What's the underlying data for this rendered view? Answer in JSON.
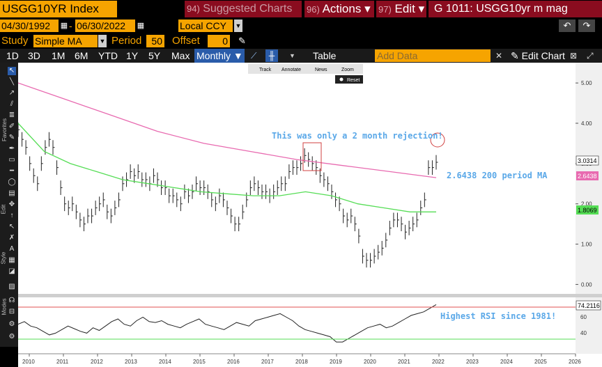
{
  "header": {
    "ticker": "USGG10YR Index",
    "suggested_num": "94)",
    "suggested_label": "Suggested Charts",
    "actions_num": "96)",
    "actions_label": "Actions",
    "edit_num": "97)",
    "edit_label": "Edit",
    "title": "G 1011: USGG10yr m mag"
  },
  "controls": {
    "start_date": "04/30/1992",
    "dash": "-",
    "end_date": "06/30/2022",
    "currency": "Local CCY",
    "study_label": "Study",
    "study_value": "Simple MA",
    "period_label": "Period",
    "period_value": "50",
    "offset_label": "Offset",
    "offset_value": "0"
  },
  "ranges": [
    "1D",
    "3D",
    "1M",
    "6M",
    "YTD",
    "1Y",
    "5Y",
    "Max"
  ],
  "frequency": "Monthly",
  "table_label": "Table",
  "add_data_placeholder": "Add Data",
  "edit_chart_label": "Edit Chart",
  "mini_toolbar": {
    "track": "Track",
    "annotate": "Annotate",
    "news": "News",
    "zoom": "Zoom",
    "reset": "Reset"
  },
  "side_labels": {
    "favorites": "Favorites",
    "edit": "Edit",
    "style": "Style",
    "modes": "Modes"
  },
  "annotations": {
    "rejection": "This was only a 2 month rejection!",
    "ma200": "2.6438 200 period MA",
    "rsi": "Highest RSI since 1981!"
  },
  "colors": {
    "orange": "#f6a400",
    "red": "#8a0c1f",
    "price": "#cccccc",
    "ma50": "#55dd55",
    "ma200": "#e86ab0",
    "annotation": "#5aa8e8"
  },
  "chart_data": {
    "type": "line",
    "x_ticks": [
      "2010",
      "2011",
      "2012",
      "2013",
      "2014",
      "2015",
      "2016",
      "2017",
      "2018",
      "2019",
      "2020",
      "2021",
      "2022",
      "2023",
      "2024",
      "2025",
      "2026"
    ],
    "y_ticks": [
      "5.00",
      "4.00",
      "3.00",
      "2.00",
      "1.00",
      "0.00"
    ],
    "ylim": [
      -0.2,
      5.4
    ],
    "last_price_label": "3.0314",
    "ma200_label": "2.6438",
    "ma50_label": "1.8069",
    "rsi_ticks": [
      "60",
      "40"
    ],
    "rsi_last_label": "74.2116",
    "series": [
      {
        "key": "price",
        "values": [
          3.84,
          3.6,
          3.4,
          3.0,
          2.7,
          2.5,
          3.0,
          3.4,
          3.6,
          3.4,
          2.9,
          2.4,
          2.0,
          1.9,
          2.0,
          1.8,
          1.6,
          1.5,
          1.7,
          1.7,
          1.9,
          2.0,
          2.1,
          1.8,
          1.7,
          1.9,
          2.1,
          2.5,
          2.6,
          2.8,
          2.7,
          2.8,
          2.6,
          2.6,
          2.5,
          2.7,
          2.6,
          2.4,
          2.4,
          2.2,
          2.2,
          2.1,
          2.0,
          2.3,
          2.2,
          2.3,
          2.5,
          2.4,
          2.4,
          2.3,
          2.1,
          2.0,
          2.2,
          2.1,
          1.9,
          1.7,
          1.5,
          1.5,
          1.8,
          2.1,
          2.4,
          2.5,
          2.4,
          2.3,
          2.3,
          2.2,
          2.3,
          2.4,
          2.5,
          2.5,
          2.8,
          2.9,
          2.9,
          3.0,
          3.2,
          3.1,
          3.0,
          2.9,
          2.7,
          2.6,
          2.5,
          2.3,
          2.1,
          2.0,
          1.7,
          1.6,
          1.7,
          1.5,
          1.2,
          0.7,
          0.6,
          0.6,
          0.7,
          0.8,
          0.9,
          1.1,
          1.4,
          1.6,
          1.6,
          1.5,
          1.3,
          1.4,
          1.5,
          1.6,
          1.9,
          2.1,
          2.9,
          2.9,
          3.0314
        ]
      },
      {
        "key": "ma200",
        "values": [
          5.0,
          4.6,
          4.2,
          3.8,
          3.5,
          3.3,
          3.1,
          2.95,
          2.8,
          2.65
        ]
      },
      {
        "key": "ma50",
        "values": [
          4.0,
          3.3,
          3.0,
          2.8,
          2.6,
          2.5,
          2.4,
          2.3,
          2.25,
          2.2,
          2.2,
          2.3,
          2.2,
          2.0,
          1.9,
          1.8,
          1.8
        ]
      },
      {
        "key": "rsi",
        "values": [
          52,
          55,
          50,
          48,
          44,
          40,
          42,
          46,
          50,
          47,
          44,
          42,
          48,
          45,
          50,
          55,
          58,
          52,
          50,
          56,
          60,
          55,
          54,
          56,
          52,
          50,
          48,
          52,
          55,
          58,
          52,
          50,
          48,
          46,
          50,
          54,
          52,
          50,
          56,
          58,
          60,
          62,
          64,
          60,
          56,
          50,
          46,
          44,
          42,
          40,
          38,
          32,
          32,
          36,
          40,
          44,
          48,
          50,
          52,
          48,
          50,
          54,
          58,
          62,
          64,
          66,
          70,
          74.2
        ]
      }
    ]
  }
}
